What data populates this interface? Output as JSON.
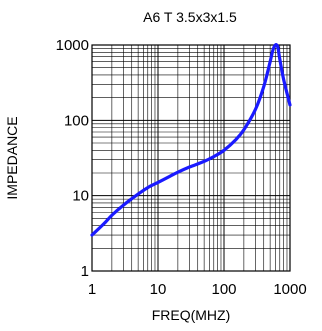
{
  "chart_data": {
    "type": "line",
    "title": "A6 T 3.5x3x1.5",
    "xlabel": "FREQ(MHZ)",
    "ylabel": "IMPEDANCE",
    "xscale": "log",
    "yscale": "log",
    "xlim": [
      1,
      1000
    ],
    "ylim": [
      1,
      1000
    ],
    "grid": true,
    "xticks": [
      "1",
      "10",
      "100",
      "1000"
    ],
    "yticks": [
      "1",
      "10",
      "100",
      "1000"
    ],
    "series_color": "#1a1aff",
    "series": [
      {
        "x": [
          1,
          1.5,
          2,
          3,
          5,
          7,
          10,
          15,
          20,
          30,
          50,
          70,
          100,
          150,
          200,
          300,
          400,
          500,
          550,
          600,
          650,
          700,
          800,
          1000
        ],
        "y": [
          3,
          4.2,
          5.5,
          7.5,
          10.5,
          12.8,
          15,
          18,
          20.5,
          24,
          28.5,
          33,
          40,
          55,
          75,
          140,
          280,
          600,
          850,
          1000,
          950,
          650,
          350,
          160
        ]
      }
    ]
  }
}
